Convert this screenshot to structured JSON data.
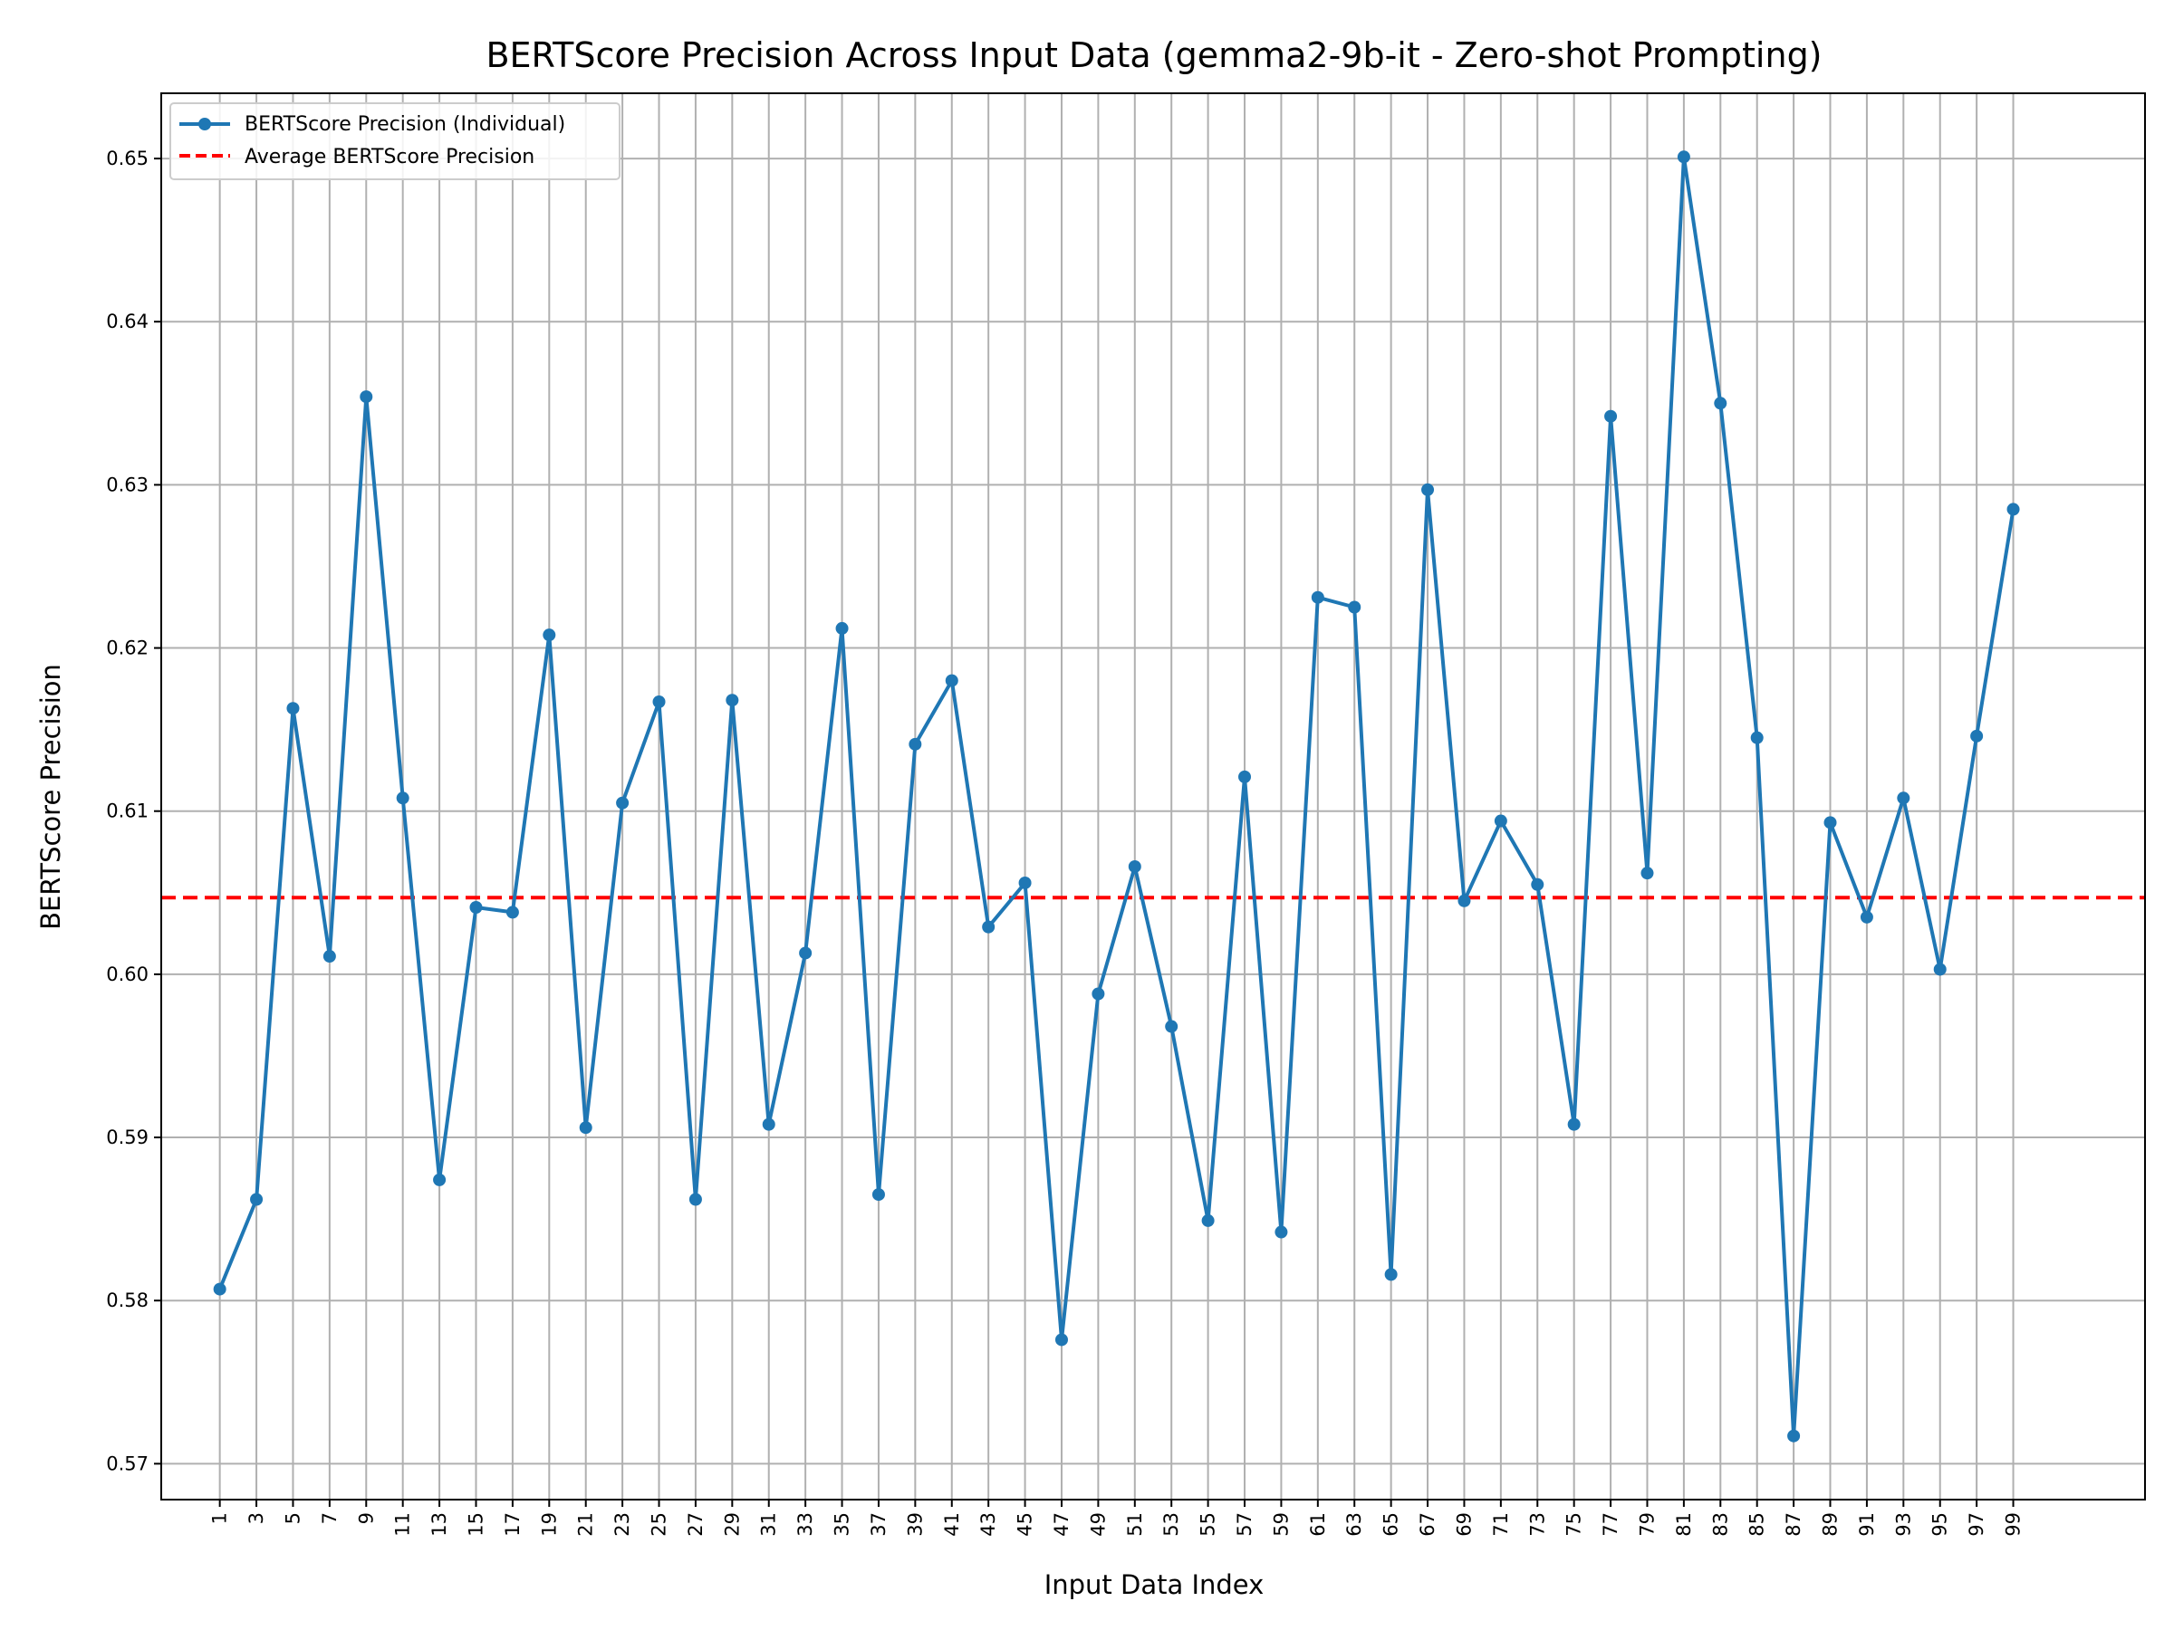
{
  "chart_data": {
    "type": "line",
    "title": "BERTScore Precision Across Input Data (gemma2-9b-it - Zero-shot Prompting)",
    "xlabel": "Input Data Index",
    "ylabel": "BERTScore Precision",
    "xlim": [
      -2.2,
      106.2
    ],
    "ylim": [
      0.5678,
      0.654
    ],
    "x_ticks": [
      1,
      3,
      5,
      7,
      9,
      11,
      13,
      15,
      17,
      19,
      21,
      23,
      25,
      27,
      29,
      31,
      33,
      35,
      37,
      39,
      41,
      43,
      45,
      47,
      49,
      51,
      53,
      55,
      57,
      59,
      61,
      63,
      65,
      67,
      69,
      71,
      73,
      75,
      77,
      79,
      81,
      83,
      85,
      87,
      89,
      91,
      93,
      95,
      97,
      99
    ],
    "y_ticks": [
      0.57,
      0.58,
      0.59,
      0.6,
      0.61,
      0.62,
      0.63,
      0.64,
      0.65
    ],
    "y_tick_labels": [
      "0.57",
      "0.58",
      "0.59",
      "0.60",
      "0.61",
      "0.62",
      "0.63",
      "0.64",
      "0.65"
    ],
    "grid": true,
    "legend_position": "top-left",
    "x": [
      1,
      3,
      5,
      7,
      9,
      11,
      13,
      15,
      17,
      19,
      21,
      23,
      25,
      27,
      29,
      31,
      33,
      35,
      37,
      39,
      41,
      43,
      45,
      47,
      49,
      51,
      53,
      55,
      57,
      59,
      61,
      63,
      65,
      67,
      69,
      71,
      73,
      75,
      77,
      79,
      81,
      83,
      85,
      87,
      89,
      91,
      93,
      95,
      97,
      99
    ],
    "series": [
      {
        "name": "BERTScore Precision (Individual)",
        "color": "#1f77b4",
        "style": "solid-line-with-dot-markers",
        "values": [
          0.5807,
          0.5862,
          0.6163,
          0.6011,
          0.6354,
          0.6108,
          0.5874,
          0.6041,
          0.6038,
          0.6208,
          0.5906,
          0.6105,
          0.6167,
          0.5862,
          0.6168,
          0.5908,
          0.6013,
          0.6212,
          0.5865,
          0.6141,
          0.618,
          0.6029,
          0.6056,
          0.5776,
          0.5988,
          0.6066,
          0.5968,
          0.5849,
          0.6121,
          0.5842,
          0.6231,
          0.6225,
          0.5816,
          0.6297,
          0.6045,
          0.6094,
          0.6055,
          0.5908,
          0.6342,
          0.6062,
          0.6501,
          0.635,
          0.6145,
          0.5717,
          0.6093,
          0.6035,
          0.6108,
          0.6003,
          0.6146,
          0.6285
        ]
      }
    ],
    "average_line": {
      "name": "Average BERTScore Precision",
      "value": 0.6047,
      "color": "#ff0000",
      "style": "dashed"
    }
  }
}
